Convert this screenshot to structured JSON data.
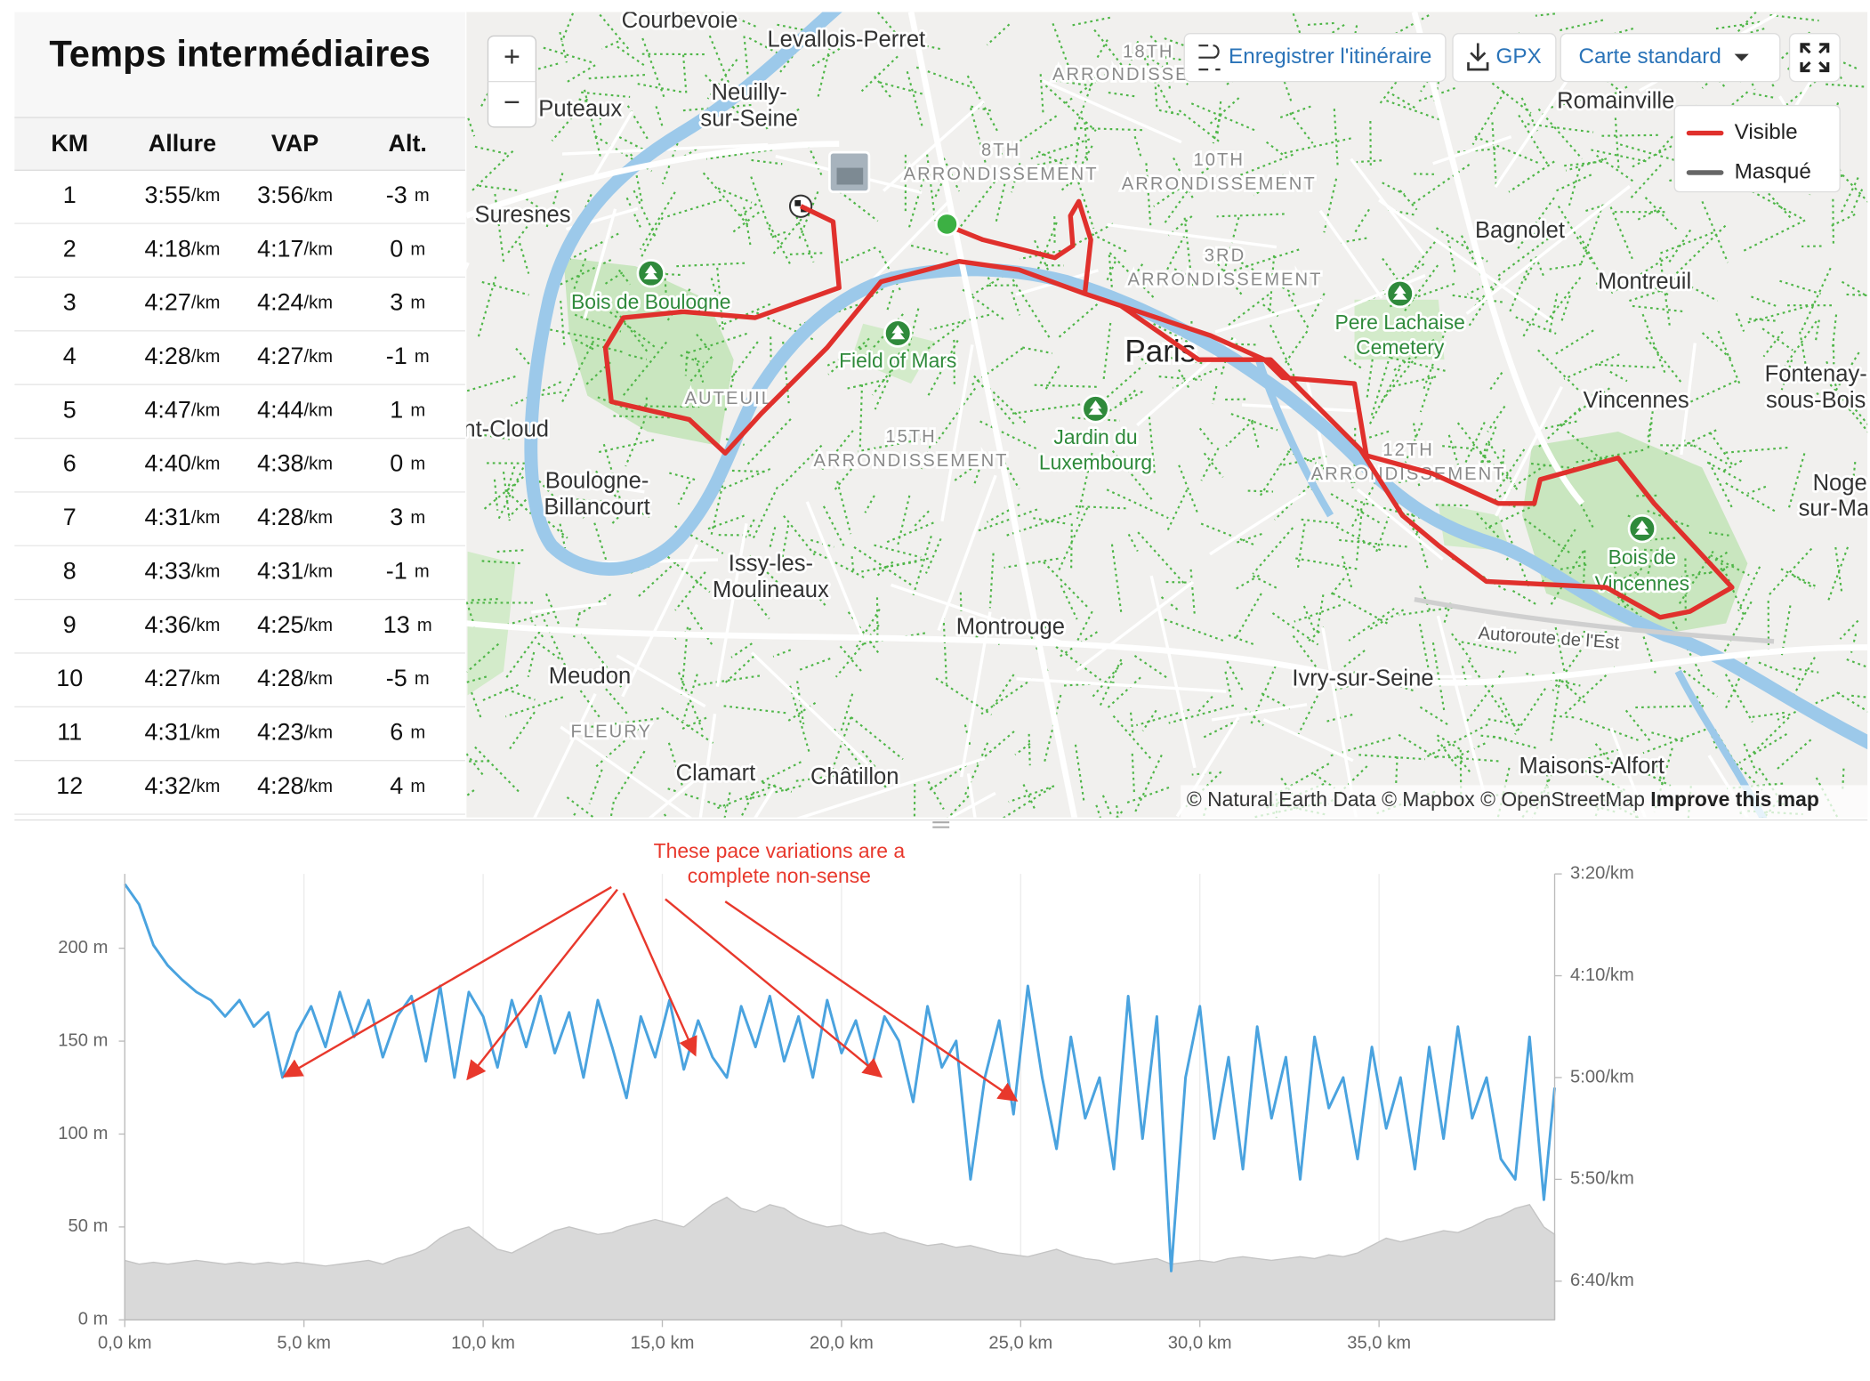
{
  "splits": {
    "title": "Temps intermédiaires",
    "headers": [
      "KM",
      "Allure",
      "VAP",
      "Alt."
    ],
    "pace_unit": "/km",
    "alt_unit": "m",
    "rows": [
      [
        1,
        "3:55",
        "3:56",
        -3
      ],
      [
        2,
        "4:18",
        "4:17",
        0
      ],
      [
        3,
        "4:27",
        "4:24",
        3
      ],
      [
        4,
        "4:28",
        "4:27",
        -1
      ],
      [
        5,
        "4:47",
        "4:44",
        1
      ],
      [
        6,
        "4:40",
        "4:38",
        0
      ],
      [
        7,
        "4:31",
        "4:28",
        3
      ],
      [
        8,
        "4:33",
        "4:31",
        -1
      ],
      [
        9,
        "4:36",
        "4:25",
        13
      ],
      [
        10,
        "4:27",
        "4:28",
        -5
      ],
      [
        11,
        "4:31",
        "4:23",
        6
      ],
      [
        12,
        "4:32",
        "4:28",
        4
      ]
    ]
  },
  "map": {
    "zoom_in": "+",
    "zoom_out": "−",
    "save_route": "Enregistrer l'itinéraire",
    "gpx": "GPX",
    "style": "Carte standard",
    "legend": [
      {
        "name": "Visible",
        "color": "#e0302c"
      },
      {
        "name": "Masqué",
        "color": "#666666"
      }
    ],
    "attribution": "© Natural Earth Data © Mapbox © OpenStreetMap",
    "improve": "Improve this map",
    "labels": [
      "Courbevoie",
      "Levallois-Perret",
      "Neuilly-",
      "sur-Seine",
      "Puteaux",
      "Suresnes",
      "Bois de Boulogne",
      "Field of Mars",
      "Paris",
      "Pere Lachaise",
      "Cemetery",
      "Jardin du",
      "Luxembourg",
      "Bagnolet",
      "Montreuil",
      "Romainville",
      "Vincennes",
      "Fontenay-",
      "sous-Bois",
      "Bois de",
      "Vincennes",
      "Boulogne-",
      "Billancourt",
      "Issy-les-",
      "Moulineaux",
      "Montrouge",
      "Ivry-sur-Seine",
      "Meudon",
      "Clamart",
      "Châtillon",
      "Maisons-Alfort",
      "8TH",
      "ARRONDISSEMENT",
      "10TH",
      "ARRONDISSEMENT",
      "3RD",
      "ARRONDISSEMENT",
      "15TH",
      "ARRONDISSEMENT",
      "12TH",
      "ARRONDISSEMENT",
      "AUTEUIL",
      "FLEURY",
      "Autoroute de l'Est",
      "nt-Cloud",
      "Noge",
      "sur-Ma",
      "18TH",
      "ARRONDISSE"
    ]
  },
  "chart_data": {
    "type": "line",
    "annotation": [
      "These pace variations are a",
      "complete non-sense"
    ],
    "annotation_color": "#e8382c",
    "grid": "x",
    "x": [
      0,
      0.4,
      0.8,
      1.2,
      1.6,
      2.0,
      2.4,
      2.8,
      3.2,
      3.6,
      4.0,
      4.4,
      4.8,
      5.2,
      5.6,
      6.0,
      6.4,
      6.8,
      7.2,
      7.6,
      8.0,
      8.4,
      8.8,
      9.2,
      9.6,
      10.0,
      10.4,
      10.8,
      11.2,
      11.6,
      12.0,
      12.4,
      12.8,
      13.2,
      13.6,
      14.0,
      14.4,
      14.8,
      15.2,
      15.6,
      16.0,
      16.4,
      16.8,
      17.2,
      17.6,
      18.0,
      18.4,
      18.8,
      19.2,
      19.6,
      20.0,
      20.4,
      20.8,
      21.2,
      21.6,
      22.0,
      22.4,
      22.8,
      23.2,
      23.6,
      24.0,
      24.4,
      24.8,
      25.2,
      25.6,
      26.0,
      26.4,
      26.8,
      27.2,
      27.6,
      28.0,
      28.4,
      28.8,
      29.2,
      29.6,
      30.0,
      30.4,
      30.8,
      31.2,
      31.6,
      32.0,
      32.4,
      32.8,
      33.2,
      33.6,
      34.0,
      34.4,
      34.8,
      35.2,
      35.6,
      36.0,
      36.4,
      36.8,
      37.2,
      37.6,
      38.0,
      38.4,
      38.8,
      39.2,
      39.6,
      39.9
    ],
    "series": [
      {
        "type": "area",
        "color": "#d9d9d9",
        "values": [
          32,
          30,
          31,
          30,
          31,
          32,
          31,
          30,
          31,
          30,
          31,
          30,
          31,
          30,
          29,
          30,
          31,
          32,
          30,
          33,
          35,
          38,
          44,
          48,
          50,
          44,
          38,
          36,
          40,
          44,
          48,
          50,
          48,
          46,
          47,
          50,
          52,
          54,
          52,
          50,
          56,
          62,
          66,
          60,
          58,
          62,
          60,
          55,
          52,
          50,
          51,
          48,
          46,
          47,
          44,
          42,
          40,
          41,
          39,
          40,
          38,
          36,
          35,
          34,
          36,
          38,
          35,
          33,
          32,
          30,
          31,
          32,
          33,
          30,
          31,
          32,
          31,
          33,
          34,
          33,
          32,
          33,
          34,
          33,
          35,
          34,
          36,
          40,
          44,
          42,
          44,
          46,
          48,
          47,
          50,
          54,
          56,
          60,
          62,
          50,
          46
        ]
      },
      {
        "type": "line",
        "color": "#4aa3df",
        "axis": "y2",
        "values": [
          205,
          215,
          235,
          245,
          252,
          258,
          262,
          270,
          262,
          275,
          268,
          300,
          278,
          265,
          285,
          258,
          280,
          262,
          290,
          270,
          260,
          292,
          255,
          300,
          258,
          270,
          295,
          262,
          285,
          260,
          288,
          268,
          300,
          262,
          285,
          310,
          270,
          290,
          262,
          296,
          272,
          290,
          300,
          265,
          285,
          260,
          292,
          270,
          300,
          262,
          288,
          272,
          298,
          270,
          282,
          312,
          265,
          295,
          282,
          350,
          300,
          272,
          318,
          255,
          300,
          335,
          280,
          320,
          300,
          345,
          260,
          330,
          270,
          395,
          300,
          265,
          330,
          290,
          345,
          275,
          320,
          290,
          350,
          280,
          315,
          300,
          340,
          285,
          325,
          300,
          345,
          285,
          330,
          275,
          320,
          300,
          340,
          350,
          280,
          360,
          305
        ]
      }
    ],
    "xlim": [
      0,
      39.9
    ],
    "xticks": [
      {
        "value": 0,
        "label": "0,0 km"
      },
      {
        "value": 5,
        "label": "5,0 km"
      },
      {
        "value": 10,
        "label": "10,0 km"
      },
      {
        "value": 15,
        "label": "15,0 km"
      },
      {
        "value": 20,
        "label": "20,0 km"
      },
      {
        "value": 25,
        "label": "25,0 km"
      },
      {
        "value": 30,
        "label": "30,0 km"
      },
      {
        "value": 35,
        "label": "35,0 km"
      }
    ],
    "ylim": [
      0,
      240
    ],
    "yticks": [
      {
        "value": 0,
        "label": "0 m"
      },
      {
        "value": 50,
        "label": "50 m"
      },
      {
        "value": 100,
        "label": "100 m"
      },
      {
        "value": 150,
        "label": "150 m"
      },
      {
        "value": 200,
        "label": "200 m"
      }
    ],
    "y2lim": [
      200,
      419
    ],
    "y2_inverted": true,
    "y2ticks": [
      {
        "value": 200,
        "label": "3:20/km"
      },
      {
        "value": 250,
        "label": "4:10/km"
      },
      {
        "value": 300,
        "label": "5:00/km"
      },
      {
        "value": 350,
        "label": "5:50/km"
      },
      {
        "value": 400,
        "label": "6:40/km"
      }
    ]
  }
}
